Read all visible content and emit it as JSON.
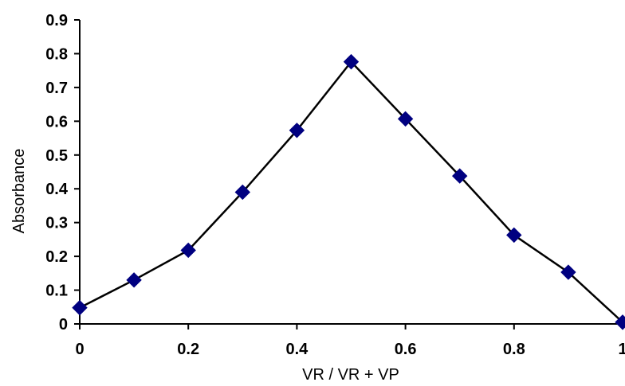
{
  "chart_data": {
    "type": "line",
    "title": "",
    "xlabel": "VR / VR + VP",
    "ylabel": "Absorbance",
    "xlim": [
      0,
      1
    ],
    "ylim": [
      0,
      0.9
    ],
    "x_ticks": [
      "0",
      "0.2",
      "0.4",
      "0.6",
      "0.8",
      "1"
    ],
    "y_ticks": [
      "0",
      "0.1",
      "0.2",
      "0.3",
      "0.4",
      "0.5",
      "0.6",
      "0.7",
      "0.8",
      "0.9"
    ],
    "grid": false,
    "legend": "none",
    "series": [
      {
        "x": [
          0,
          0.1,
          0.2,
          0.3,
          0.4,
          0.5,
          0.6,
          0.7,
          0.8,
          0.9,
          1.0
        ],
        "y": [
          0.048,
          0.13,
          0.218,
          0.39,
          0.573,
          0.776,
          0.607,
          0.438,
          0.263,
          0.153,
          0.005
        ],
        "line_color": "#000000",
        "marker": "diamond",
        "marker_color": "#000080"
      }
    ]
  }
}
